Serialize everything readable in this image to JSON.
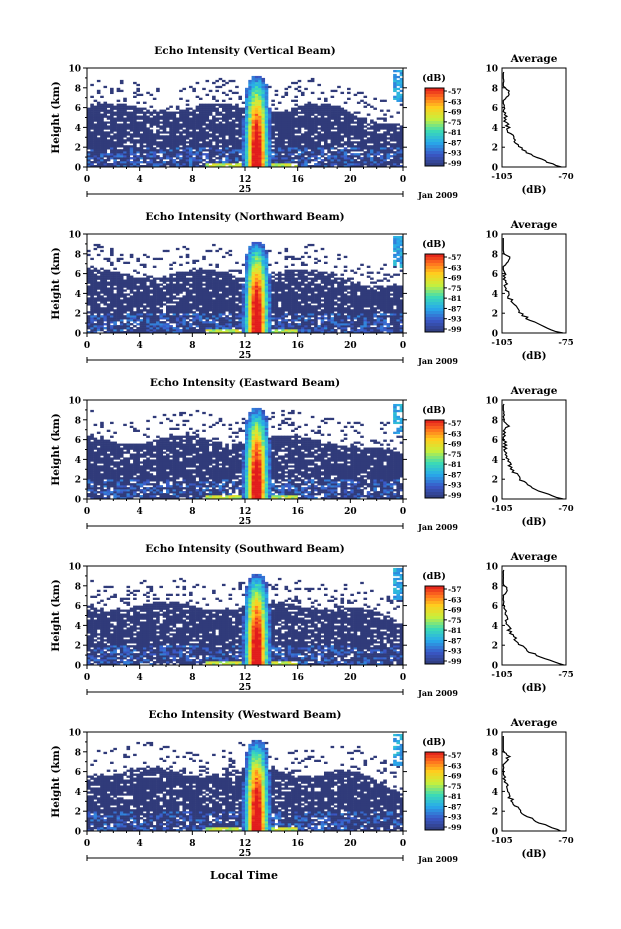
{
  "page": {
    "xlabel": "Local Time",
    "colors": {
      "background": "#ffffff",
      "clutter": "#303b7a"
    }
  },
  "chart_data": [
    {
      "type": "heatmap",
      "title": "Echo Intensity (Vertical Beam)",
      "ylabel": "Height (km)",
      "yticks": [
        "0",
        "2",
        "4",
        "6",
        "8",
        "10"
      ],
      "xticks": [
        "0",
        "4",
        "8",
        "12",
        "16",
        "20",
        "0"
      ],
      "day_label": "25",
      "date_label": "Jan 2009",
      "colorbar": {
        "unit": "(dB)",
        "ticks": [
          "-57",
          "-63",
          "-69",
          "-75",
          "-81",
          "-87",
          "-93",
          "-99"
        ]
      },
      "profile": {
        "title": "Average",
        "xticks": [
          "-105",
          "-70"
        ],
        "xlabel": "(dB)",
        "yticks": [
          "0",
          "2",
          "4",
          "6",
          "8",
          "10"
        ]
      }
    },
    {
      "type": "heatmap",
      "title": "Echo Intensity (Northward Beam)",
      "ylabel": "Height (km)",
      "yticks": [
        "0",
        "2",
        "4",
        "6",
        "8",
        "10"
      ],
      "xticks": [
        "0",
        "4",
        "8",
        "12",
        "16",
        "20",
        "0"
      ],
      "day_label": "25",
      "date_label": "Jan 2009",
      "colorbar": {
        "unit": "(dB)",
        "ticks": [
          "-57",
          "-63",
          "-69",
          "-75",
          "-81",
          "-87",
          "-93",
          "-99"
        ]
      },
      "profile": {
        "title": "Average",
        "xticks": [
          "-105",
          "-75"
        ],
        "xlabel": "(dB)",
        "yticks": [
          "0",
          "2",
          "4",
          "6",
          "8",
          "10"
        ]
      }
    },
    {
      "type": "heatmap",
      "title": "Echo Intensity (Eastward Beam)",
      "ylabel": "Height (km)",
      "yticks": [
        "0",
        "2",
        "4",
        "6",
        "8",
        "10"
      ],
      "xticks": [
        "0",
        "4",
        "8",
        "12",
        "16",
        "20",
        "0"
      ],
      "day_label": "25",
      "date_label": "Jan 2009",
      "colorbar": {
        "unit": "(dB)",
        "ticks": [
          "-57",
          "-63",
          "-69",
          "-75",
          "-81",
          "-87",
          "-93",
          "-99"
        ]
      },
      "profile": {
        "title": "Average",
        "xticks": [
          "-105",
          "-70"
        ],
        "xlabel": "(dB)",
        "yticks": [
          "0",
          "2",
          "4",
          "6",
          "8",
          "10"
        ]
      }
    },
    {
      "type": "heatmap",
      "title": "Echo Intensity (Southward Beam)",
      "ylabel": "Height (km)",
      "yticks": [
        "0",
        "2",
        "4",
        "6",
        "8",
        "10"
      ],
      "xticks": [
        "0",
        "4",
        "8",
        "12",
        "16",
        "20",
        "0"
      ],
      "day_label": "25",
      "date_label": "Jan 2009",
      "colorbar": {
        "unit": "(dB)",
        "ticks": [
          "-57",
          "-63",
          "-69",
          "-75",
          "-81",
          "-87",
          "-93",
          "-99"
        ]
      },
      "profile": {
        "title": "Average",
        "xticks": [
          "-105",
          "-75"
        ],
        "xlabel": "(dB)",
        "yticks": [
          "0",
          "2",
          "4",
          "6",
          "8",
          "10"
        ]
      }
    },
    {
      "type": "heatmap",
      "title": "Echo Intensity (Westward Beam)",
      "ylabel": "Height (km)",
      "yticks": [
        "0",
        "2",
        "4",
        "6",
        "8",
        "10"
      ],
      "xticks": [
        "0",
        "4",
        "8",
        "12",
        "16",
        "20",
        "0"
      ],
      "day_label": "25",
      "date_label": "Jan 2009",
      "colorbar": {
        "unit": "(dB)",
        "ticks": [
          "-57",
          "-63",
          "-69",
          "-75",
          "-81",
          "-87",
          "-93",
          "-99"
        ]
      },
      "profile": {
        "title": "Average",
        "xticks": [
          "-105",
          "-70"
        ],
        "xlabel": "(dB)",
        "yticks": [
          "0",
          "2",
          "4",
          "6",
          "8",
          "10"
        ]
      }
    }
  ]
}
